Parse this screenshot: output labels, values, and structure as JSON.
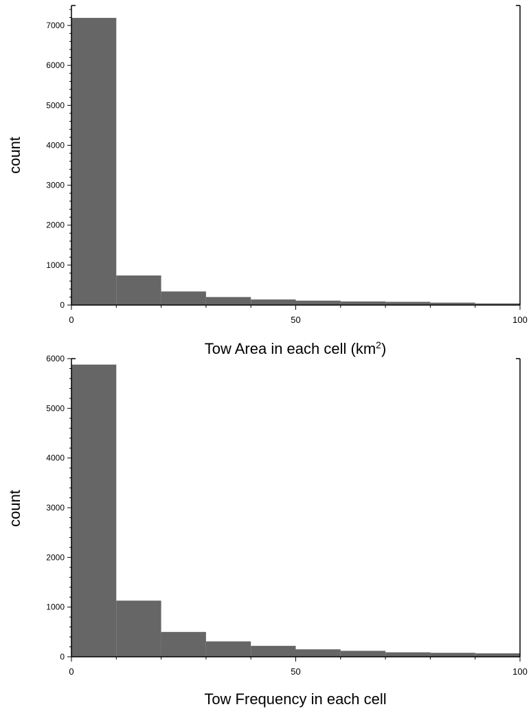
{
  "colors": {
    "bar": "#666666",
    "axis": "#000000",
    "background": "#ffffff"
  },
  "chart_data": [
    {
      "type": "bar",
      "title": "",
      "xlabel": "Tow Area in each cell (km",
      "xlabel_superscript": "2",
      "xlabel_suffix": ")",
      "ylabel": "count",
      "xlim": [
        0,
        100
      ],
      "ylim": [
        0,
        7500
      ],
      "x_ticks": [
        0,
        50,
        100
      ],
      "y_ticks": [
        0,
        1000,
        2000,
        3000,
        4000,
        5000,
        6000,
        7000
      ],
      "bin_edges": [
        0,
        10,
        20,
        30,
        40,
        50,
        60,
        70,
        80,
        90,
        100
      ],
      "values": [
        7190,
        740,
        340,
        200,
        140,
        110,
        90,
        80,
        60,
        40
      ],
      "grid": false,
      "legend": false
    },
    {
      "type": "bar",
      "title": "",
      "xlabel": "Tow Frequency in each cell",
      "xlabel_superscript": "",
      "xlabel_suffix": "",
      "ylabel": "count",
      "xlim": [
        0,
        100
      ],
      "ylim": [
        0,
        6000
      ],
      "x_ticks": [
        0,
        50,
        100
      ],
      "y_ticks": [
        0,
        1000,
        2000,
        3000,
        4000,
        5000,
        6000
      ],
      "bin_edges": [
        0,
        10,
        20,
        30,
        40,
        50,
        60,
        70,
        80,
        90,
        100
      ],
      "values": [
        5880,
        1130,
        500,
        310,
        220,
        150,
        120,
        90,
        80,
        70
      ],
      "grid": false,
      "legend": false
    }
  ]
}
